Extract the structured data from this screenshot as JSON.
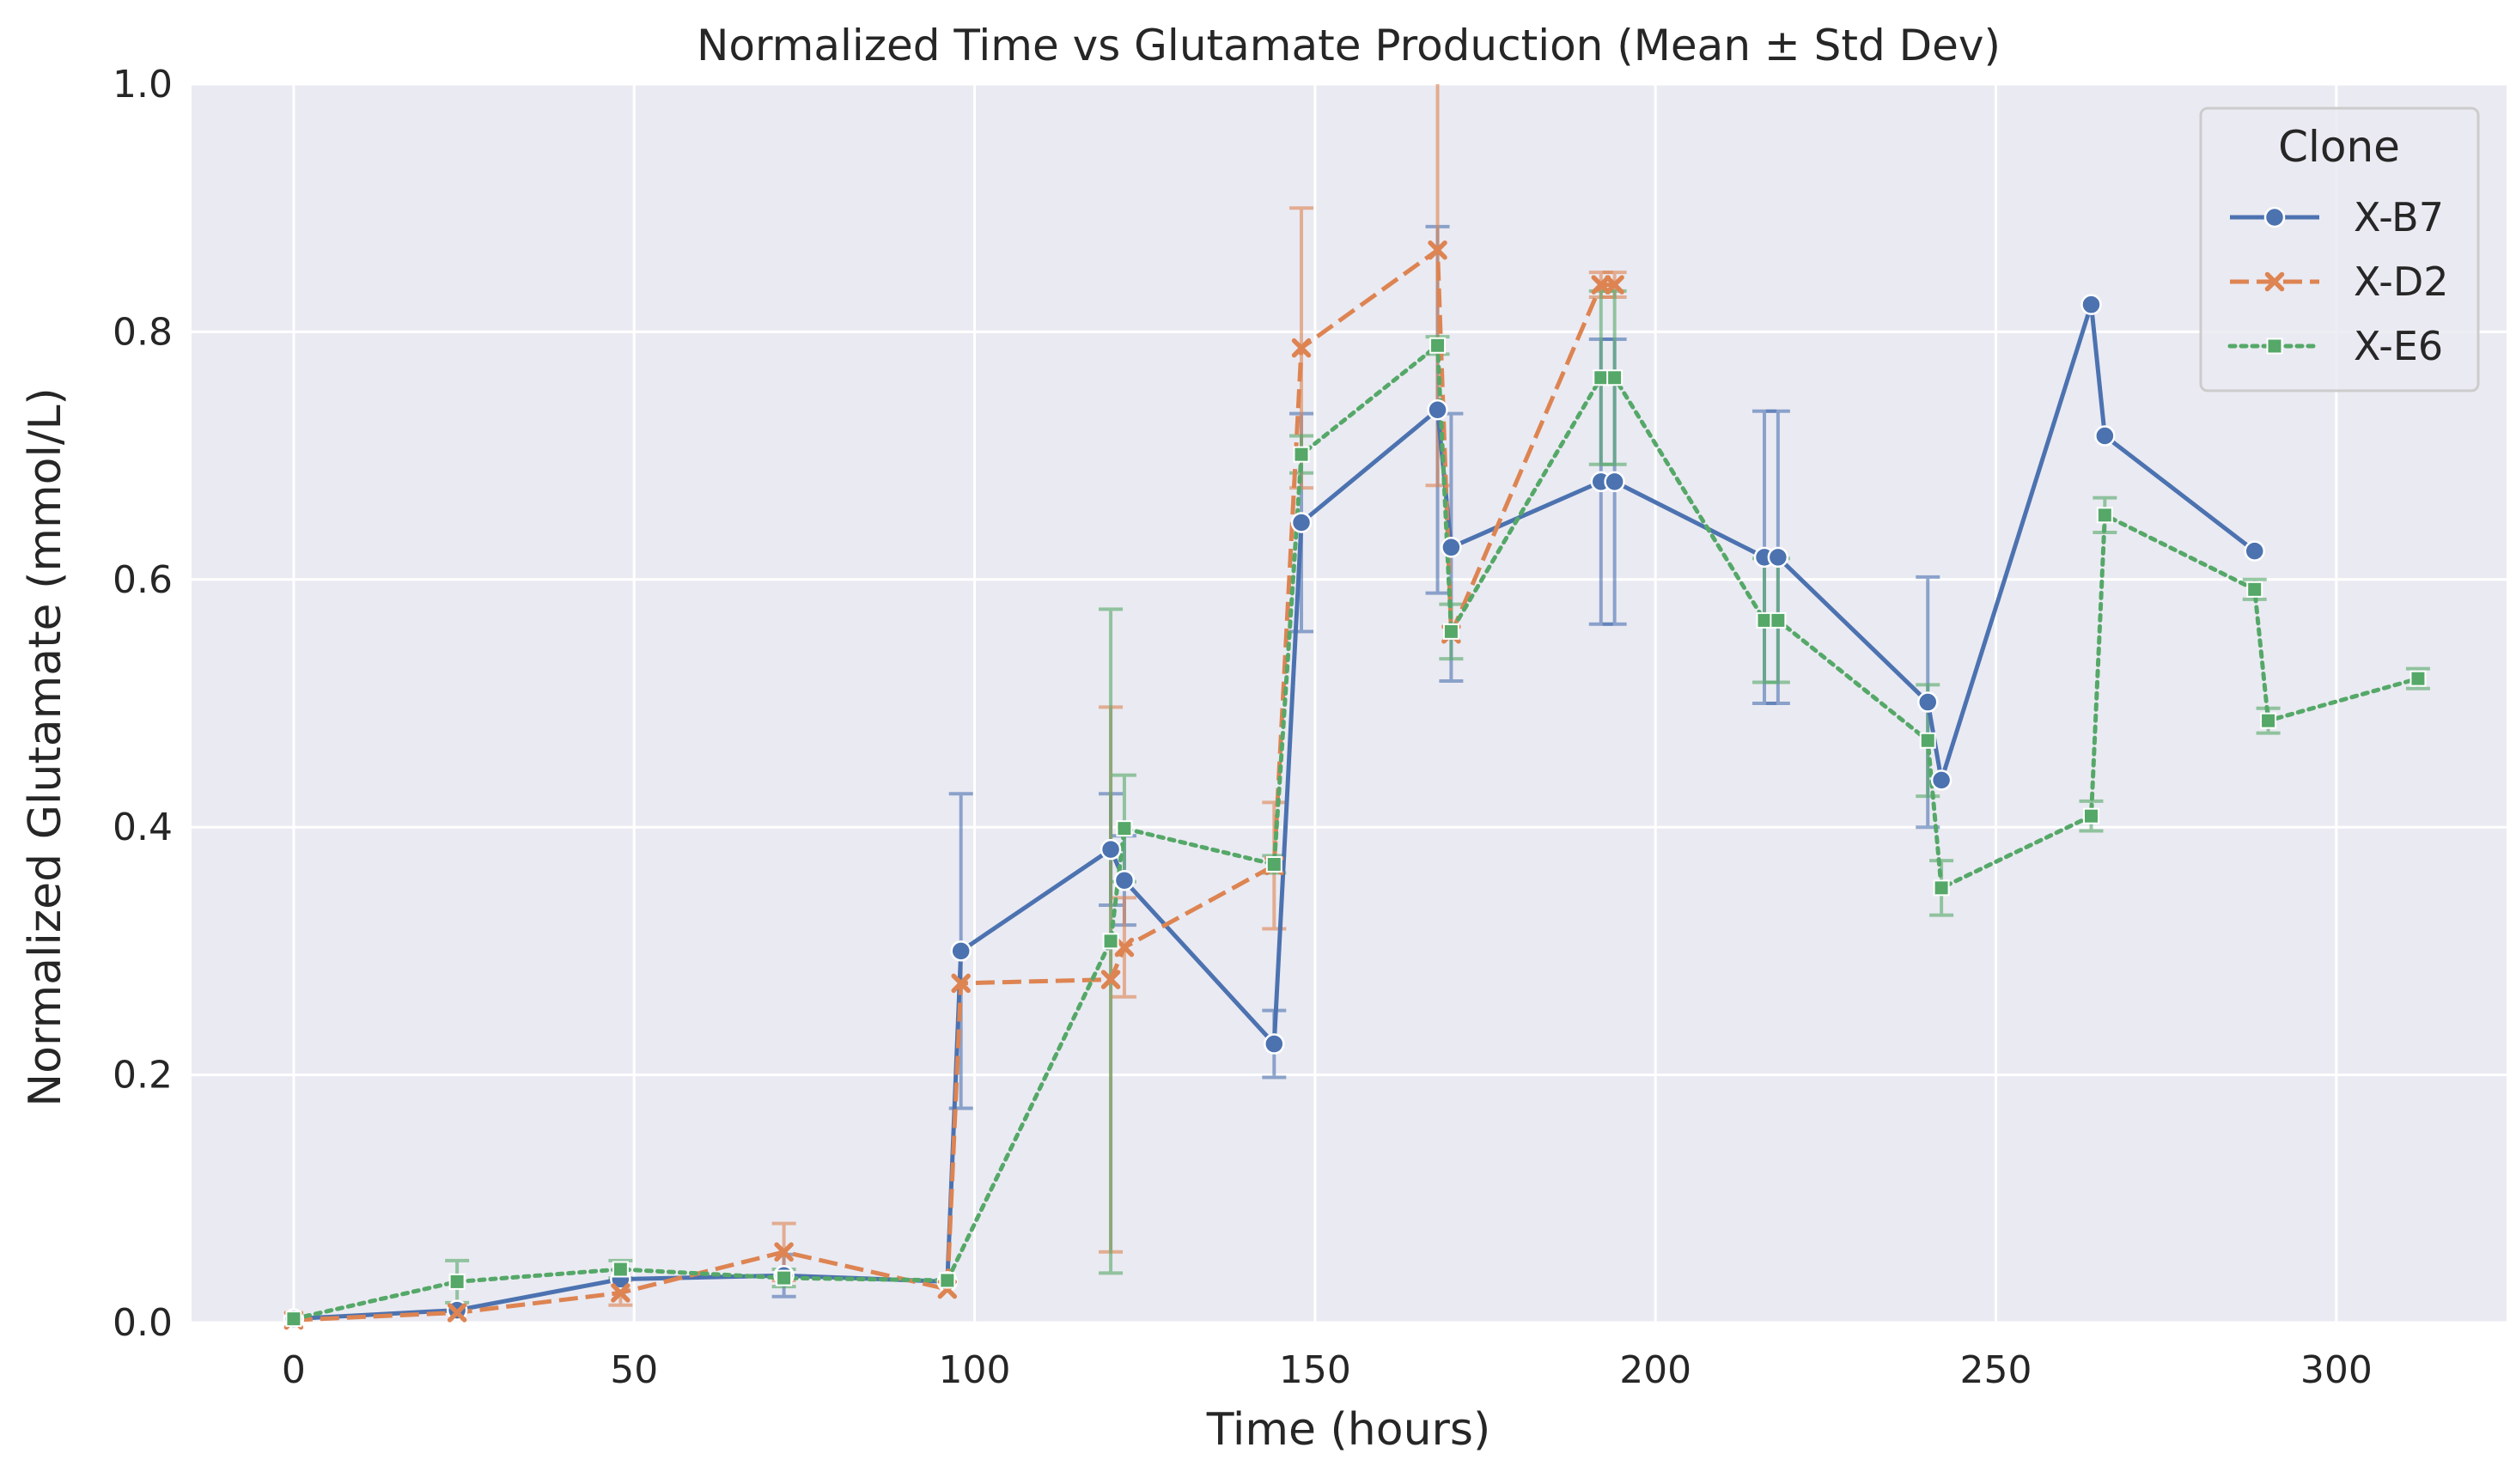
{
  "chart_data": {
    "type": "line",
    "title": "Normalized Time vs Glutamate Production (Mean ± Std Dev)",
    "xlabel": "Time (hours)",
    "ylabel": "Normalized Glutamate (mmol/L)",
    "xlim": [
      -15,
      325
    ],
    "ylim": [
      0,
      1.0
    ],
    "xticks": [
      0,
      50,
      100,
      150,
      200,
      250,
      300
    ],
    "yticks": [
      0.0,
      0.2,
      0.4,
      0.6,
      0.8,
      1.0
    ],
    "grid": true,
    "background": "#eaeaf2",
    "legend": {
      "title": "Clone",
      "position": "top-right"
    },
    "series": [
      {
        "name": "X-B7",
        "color": "#4c72b0",
        "dash": "solid",
        "marker": "circle",
        "x": [
          0,
          24,
          48,
          72,
          96,
          98,
          120,
          122,
          144,
          148,
          168,
          170,
          192,
          194,
          216,
          218,
          240,
          242,
          264,
          266,
          288
        ],
        "y": [
          0.003,
          0.01,
          0.035,
          0.038,
          0.033,
          0.3,
          0.382,
          0.357,
          0.225,
          0.646,
          0.737,
          0.626,
          0.679,
          0.679,
          0.618,
          0.618,
          0.501,
          0.438,
          0.822,
          0.716,
          0.623
        ],
        "error": [
          0,
          0,
          0,
          0.017,
          0,
          0.127,
          0.045,
          0.036,
          0.027,
          0.088,
          0.148,
          0.108,
          0.115,
          0.115,
          0.118,
          0.118,
          0.101,
          0,
          0,
          0,
          0
        ]
      },
      {
        "name": "X-D2",
        "color": "#dd8452",
        "dash": "dashed",
        "marker": "x",
        "x": [
          0,
          24,
          48,
          72,
          96,
          98,
          120,
          122,
          144,
          148,
          168,
          170,
          192,
          194
        ],
        "y": [
          0.002,
          0.008,
          0.024,
          0.057,
          0.027,
          0.274,
          0.277,
          0.303,
          0.369,
          0.787,
          0.866,
          0.556,
          0.838,
          0.838
        ],
        "error": [
          0,
          0,
          0.01,
          0.023,
          0,
          0,
          0.22,
          0.04,
          0.051,
          0.113,
          0.19,
          0,
          0.01,
          0.01
        ]
      },
      {
        "name": "X-E6",
        "color": "#55a868",
        "dash": "dotted",
        "marker": "square",
        "x": [
          0,
          24,
          48,
          72,
          96,
          120,
          122,
          144,
          148,
          168,
          170,
          192,
          194,
          216,
          218,
          240,
          242,
          264,
          266,
          288,
          290,
          312
        ],
        "y": [
          0.003,
          0.033,
          0.043,
          0.036,
          0.034,
          0.308,
          0.399,
          0.37,
          0.701,
          0.789,
          0.558,
          0.763,
          0.763,
          0.567,
          0.567,
          0.47,
          0.351,
          0.409,
          0.652,
          0.592,
          0.486,
          0.52
        ],
        "error": [
          0,
          0.017,
          0.007,
          0.007,
          0,
          0.268,
          0.043,
          0.007,
          0.015,
          0.007,
          0.022,
          0.07,
          0.07,
          0.05,
          0.05,
          0.045,
          0.022,
          0.012,
          0.014,
          0.008,
          0.01,
          0.008
        ]
      }
    ]
  }
}
